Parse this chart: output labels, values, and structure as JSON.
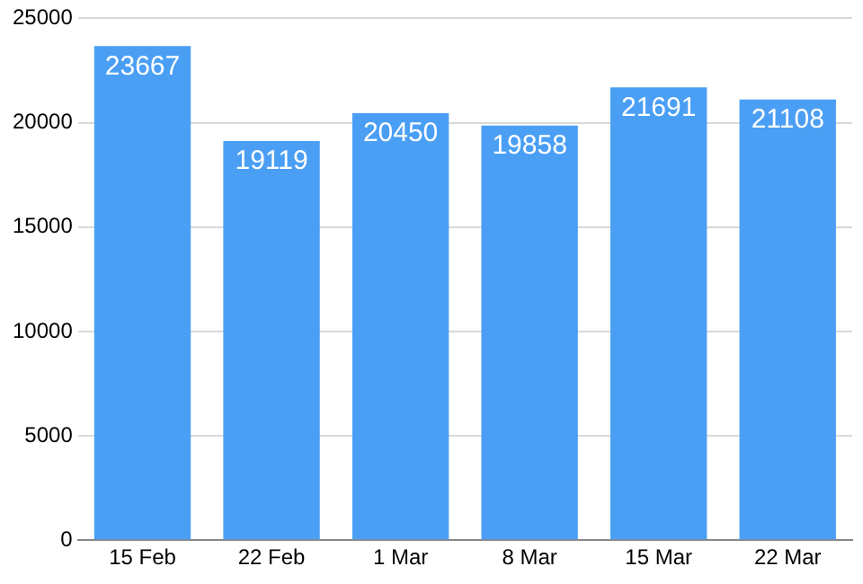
{
  "chart_data": {
    "type": "bar",
    "categories": [
      "15 Feb",
      "22 Feb",
      "1 Mar",
      "8 Mar",
      "15 Mar",
      "22 Mar"
    ],
    "values": [
      23667,
      19119,
      20450,
      19858,
      21691,
      21108
    ],
    "color": "#4a9ff5",
    "ylim": [
      0,
      25000
    ],
    "yticks": [
      0,
      5000,
      10000,
      15000,
      20000,
      25000
    ],
    "grid": "y",
    "legend": false,
    "data_labels": true
  }
}
